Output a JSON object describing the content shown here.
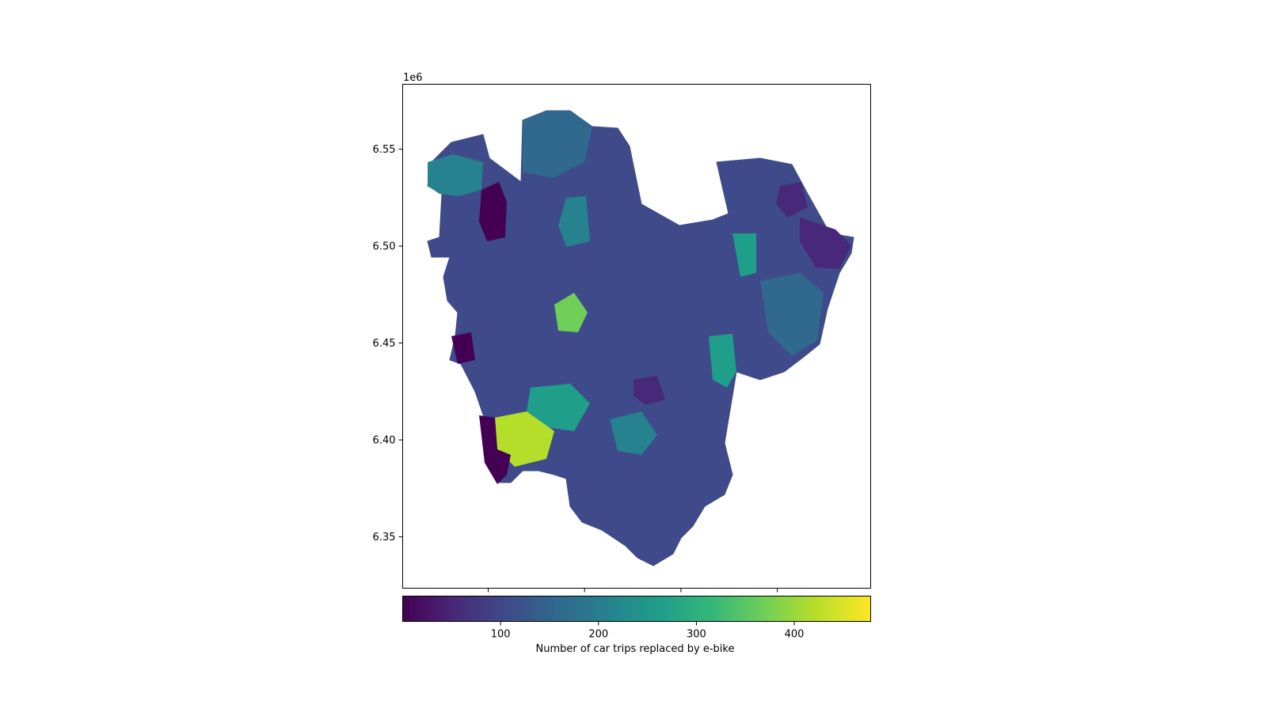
{
  "chart_data": {
    "type": "choropleth",
    "offset_label": "1e6",
    "y_ticks": [
      "6.35",
      "6.40",
      "6.45",
      "6.50",
      "6.55"
    ],
    "y_tick_values": [
      6.35,
      6.4,
      6.45,
      6.5,
      6.55
    ],
    "y_range": [
      6.3235,
      6.5835
    ],
    "x_ticks_count": 4,
    "x_ticks_labeled": false,
    "colorbar": {
      "colormap": "viridis",
      "orientation": "horizontal",
      "ticks": [
        "100",
        "200",
        "300",
        "400"
      ],
      "tick_values": [
        100,
        200,
        300,
        400
      ],
      "range": [
        0,
        478
      ],
      "label": "Number of car trips replaced by e-bike"
    },
    "colors": {
      "viridis": [
        "#440154",
        "#482878",
        "#3e4a89",
        "#31688e",
        "#26828e",
        "#1f9e89",
        "#35b779",
        "#6ece58",
        "#b5de2b",
        "#fde725"
      ]
    }
  }
}
